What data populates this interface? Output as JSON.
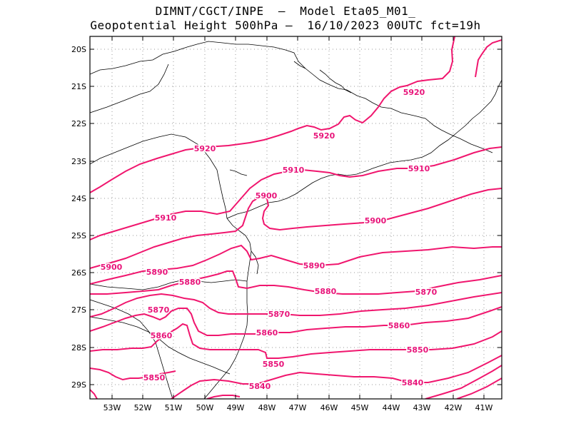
{
  "title_line1": "DIMNT/CGCT/INPE  –  Model Eta05_M01_",
  "title_line2": "Geopotential Height 500hPa –  16/10/2023 00UTC fct=19h",
  "colors": {
    "contour": "#f0166e",
    "label": "#e8157a",
    "coast": "#000000",
    "grid": "#9a9a9a"
  },
  "axes": {
    "lat_labels": [
      "20S",
      "21S",
      "22S",
      "23S",
      "24S",
      "25S",
      "26S",
      "27S",
      "28S",
      "29S"
    ],
    "lon_labels": [
      "53W",
      "52W",
      "51W",
      "50W",
      "49W",
      "48W",
      "47W",
      "46W",
      "45W",
      "44W",
      "43W",
      "42W",
      "41W"
    ]
  },
  "contour_labels": [
    {
      "text": "5920"
    },
    {
      "text": "5920"
    },
    {
      "text": "5920"
    },
    {
      "text": "5910"
    },
    {
      "text": "5910"
    },
    {
      "text": "5910"
    },
    {
      "text": "5900"
    },
    {
      "text": "5900"
    },
    {
      "text": "5900"
    },
    {
      "text": "5890"
    },
    {
      "text": "5890"
    },
    {
      "text": "5880"
    },
    {
      "text": "5880"
    },
    {
      "text": "5870"
    },
    {
      "text": "5870"
    },
    {
      "text": "5870"
    },
    {
      "text": "5860"
    },
    {
      "text": "5860"
    },
    {
      "text": "5860"
    },
    {
      "text": "5850"
    },
    {
      "text": "5850"
    },
    {
      "text": "5850"
    },
    {
      "text": "5840"
    },
    {
      "text": "5840"
    }
  ]
}
